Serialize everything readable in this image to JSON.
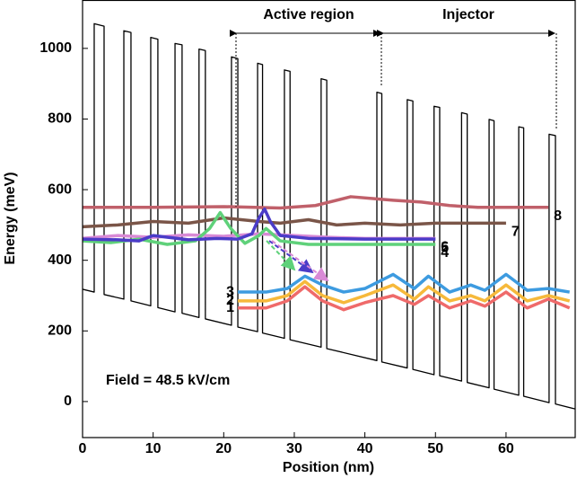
{
  "chart_data": {
    "type": "line",
    "x_label": "Position (nm)",
    "y_label": "Energy (meV)",
    "annotations": [
      "Active region",
      "Injector",
      "Field = 48.5 kV/cm"
    ],
    "xlim": [
      0,
      69.8
    ],
    "ylim": [
      -102,
      1137
    ],
    "xticks": [
      0,
      10,
      20,
      30,
      40,
      50,
      60
    ],
    "yticks": [
      0,
      200,
      400,
      600,
      800,
      1000
    ],
    "series": [
      {
        "color": "#000000",
        "x": [
          0,
          1.65,
          1.65,
          3.05,
          3.05,
          5.85,
          5.85,
          6.86,
          6.86,
          9.66,
          9.66,
          10.67,
          10.67,
          13.1,
          13.1,
          14.1,
          14.1,
          16.5,
          16.5,
          17.4,
          17.4,
          21.1,
          21.1,
          22.0,
          22.0,
          24.8,
          24.8,
          25.5,
          25.5,
          28.6,
          28.6,
          29.4,
          29.4,
          33.8,
          33.8,
          34.6,
          34.6,
          41.7,
          41.7,
          42.4,
          42.4,
          46.0,
          46.0,
          46.8,
          46.8,
          49.8,
          49.8,
          50.6,
          50.6,
          53.7,
          53.7,
          54.5,
          54.5,
          57.6,
          57.6,
          58.3,
          58.3,
          61.8,
          61.8,
          62.5,
          62.5,
          66.1,
          66.1,
          67.0,
          67.0,
          69.8
        ],
        "values": [
          318,
          310,
          1070,
          1063,
          303,
          290,
          1050,
          1045,
          285,
          271,
          1031,
          1026,
          266,
          254,
          1014,
          1010,
          250,
          238,
          998,
          994,
          234,
          216,
          976,
          971,
          211,
          198,
          958,
          954,
          194,
          179,
          939,
          935,
          175,
          154,
          914,
          910,
          150,
          116,
          876,
          872,
          112,
          95,
          855,
          851,
          91,
          76,
          836,
          833,
          73,
          58,
          818,
          814,
          54,
          39,
          799,
          795,
          35,
          18,
          778,
          775,
          15,
          -3,
          757,
          753,
          -7,
          -21
        ]
      },
      {
        "name": "8",
        "color": "#c0606a",
        "x": [
          0,
          10,
          20,
          28,
          33,
          38,
          44,
          48,
          52,
          56,
          60,
          66
        ],
        "values": [
          550,
          550,
          552,
          548,
          555,
          580,
          570,
          565,
          555,
          550,
          550,
          550
        ]
      },
      {
        "name": "7",
        "color": "#7a5548",
        "x": [
          0,
          5,
          10,
          15,
          20,
          25,
          28,
          32,
          36,
          40,
          45,
          50,
          55,
          60
        ],
        "values": [
          495,
          500,
          510,
          505,
          520,
          510,
          505,
          515,
          500,
          505,
          500,
          505,
          505,
          505
        ]
      },
      {
        "name": "6",
        "color": "#d98ad6",
        "x": [
          0,
          5,
          10,
          15,
          20,
          25,
          30,
          35,
          40,
          50
        ],
        "values": [
          462,
          470,
          465,
          472,
          468,
          475,
          470,
          465,
          462,
          462
        ]
      },
      {
        "name": "4",
        "color": "#5fd17a",
        "x": [
          0,
          4,
          8,
          12,
          16,
          18,
          19.5,
          21,
          23,
          25,
          26,
          28,
          32,
          40,
          50
        ],
        "values": [
          455,
          450,
          460,
          445,
          455,
          490,
          535,
          490,
          448,
          470,
          490,
          455,
          445,
          445,
          445
        ]
      },
      {
        "name": "5",
        "color": "#4b3cc8",
        "x": [
          0,
          5,
          8,
          10,
          15,
          19,
          22,
          24,
          25,
          25.8,
          26.6,
          28,
          32,
          40,
          50
        ],
        "values": [
          460,
          458,
          455,
          470,
          458,
          462,
          460,
          475,
          520,
          545,
          510,
          470,
          462,
          460,
          460
        ]
      },
      {
        "name": "1",
        "color": "#ef6a6a",
        "x": [
          22,
          26,
          29,
          31.5,
          34,
          37,
          40,
          44,
          47,
          49,
          52,
          55,
          57,
          60,
          63,
          66,
          69
        ],
        "values": [
          265,
          265,
          285,
          325,
          285,
          260,
          280,
          300,
          275,
          300,
          265,
          285,
          270,
          310,
          265,
          290,
          265
        ]
      },
      {
        "name": "2",
        "color": "#f6b93b",
        "x": [
          22,
          26,
          29,
          31.5,
          34,
          37,
          40,
          44,
          47,
          49,
          52,
          55,
          57,
          60,
          63,
          66,
          69
        ],
        "values": [
          285,
          285,
          300,
          340,
          300,
          280,
          300,
          330,
          290,
          325,
          285,
          300,
          285,
          330,
          285,
          300,
          285
        ]
      },
      {
        "name": "3",
        "color": "#3d9be0",
        "x": [
          22,
          26,
          29,
          31.5,
          34,
          37,
          40,
          44,
          47,
          49,
          52,
          55,
          57,
          60,
          63,
          66,
          69
        ],
        "values": [
          310,
          310,
          320,
          355,
          330,
          310,
          320,
          360,
          320,
          355,
          310,
          330,
          315,
          360,
          315,
          320,
          310
        ]
      }
    ]
  }
}
